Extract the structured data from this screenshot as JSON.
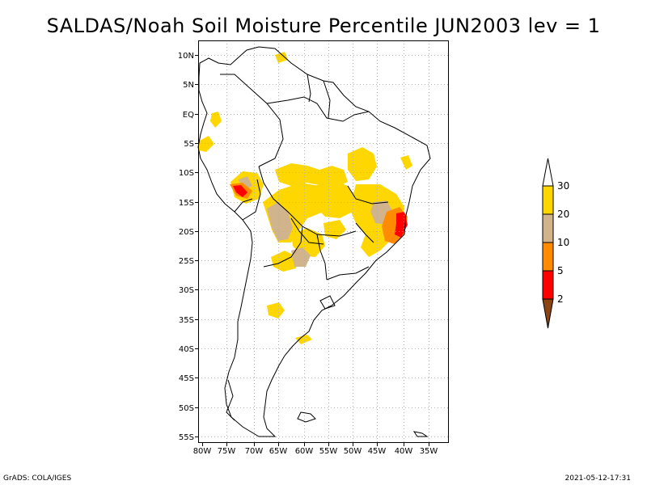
{
  "title": "SALDAS/Noah Soil Moisture Percentile JUN2003 lev = 1",
  "footer": {
    "left": "GrADS: COLA/IGES",
    "right": "2021-05-12-17:31"
  },
  "lat_labels": [
    "10N",
    "5N",
    "EQ",
    "5S",
    "10S",
    "15S",
    "20S",
    "25S",
    "30S",
    "35S",
    "40S",
    "45S",
    "50S",
    "55S"
  ],
  "lon_labels": [
    "80W",
    "75W",
    "70W",
    "65W",
    "60W",
    "55W",
    "50W",
    "45W",
    "40W",
    "35W"
  ],
  "colorbar": {
    "labels": [
      "2",
      "5",
      "10",
      "20",
      "30"
    ],
    "colors": [
      "#8b4513",
      "#ff0000",
      "#ff8c00",
      "#d2b48c",
      "#ffd700",
      "#ffffff"
    ]
  },
  "colors": {
    "frame": "#000000",
    "grid": "#b0b0b0",
    "coastline": "#000000"
  }
}
